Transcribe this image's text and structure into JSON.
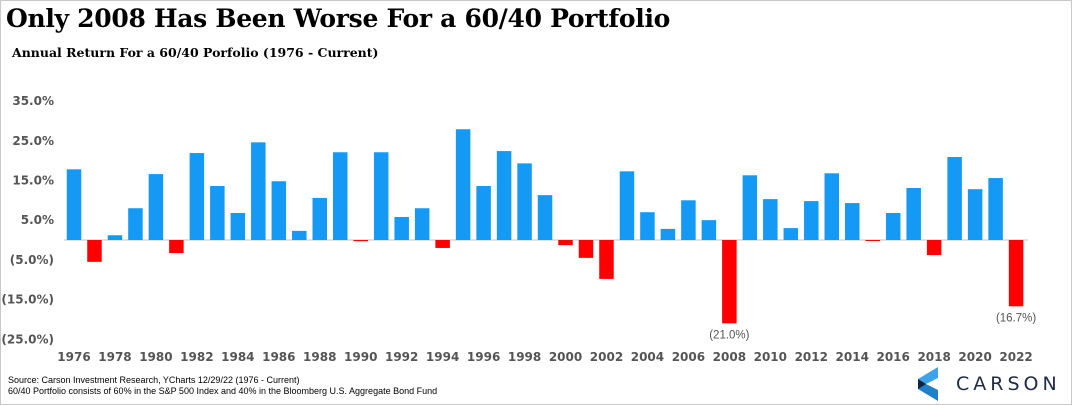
{
  "title": "Only 2008 Has Been Worse For a 60/40 Portfolio",
  "subtitle": "Annual Return For a 60/40 Porfolio (1976 - Current)",
  "source_line1": "Source: Carson Investment Research, YCharts 12/29/22 (1976 - Current)",
  "source_line2": "60/40 Portfolio consists of 60% in the S&P 500 Index and 40% in the Bloomberg U.S. Aggregate Bond Fund",
  "logo_text": "CARSON",
  "colors": {
    "positive": "#1499f5",
    "negative": "#ff0000",
    "axis": "#d9d9d9"
  },
  "chart_data": {
    "type": "bar",
    "title": "Annual Return For a 60/40 Porfolio (1976 - Current)",
    "xlabel": "",
    "ylabel": "",
    "ylim": [
      -25,
      35
    ],
    "yticks": [
      35,
      25,
      15,
      5,
      -5,
      -15,
      -25
    ],
    "ytick_labels": [
      "35.0%",
      "25.0%",
      "15.0%",
      "5.0%",
      "(5.0%)",
      "(15.0%)",
      "(25.0%)"
    ],
    "categories": [
      1976,
      1977,
      1978,
      1979,
      1980,
      1981,
      1982,
      1983,
      1984,
      1985,
      1986,
      1987,
      1988,
      1989,
      1990,
      1991,
      1992,
      1993,
      1994,
      1995,
      1996,
      1997,
      1998,
      1999,
      2000,
      2001,
      2002,
      2003,
      2004,
      2005,
      2006,
      2007,
      2008,
      2009,
      2010,
      2011,
      2012,
      2013,
      2014,
      2015,
      2016,
      2017,
      2018,
      2019,
      2020,
      2021,
      2022
    ],
    "xtick_labels": [
      "1976",
      "1978",
      "1980",
      "1982",
      "1984",
      "1986",
      "1988",
      "1990",
      "1992",
      "1994",
      "1996",
      "1998",
      "2000",
      "2002",
      "2004",
      "2006",
      "2008",
      "2010",
      "2012",
      "2014",
      "2016",
      "2018",
      "2020",
      "2022"
    ],
    "values": [
      17.8,
      -5.5,
      1.2,
      8.0,
      16.6,
      -3.3,
      21.9,
      13.6,
      6.8,
      24.6,
      14.8,
      2.3,
      10.6,
      22.1,
      -0.3,
      22.1,
      5.8,
      8.0,
      -2.0,
      27.9,
      13.6,
      22.4,
      19.3,
      11.3,
      -1.3,
      -4.5,
      -9.8,
      17.3,
      7.0,
      2.8,
      10.0,
      5.0,
      -21.0,
      16.3,
      10.3,
      3.0,
      9.8,
      16.8,
      9.3,
      -0.2,
      6.8,
      13.1,
      -3.8,
      20.9,
      12.8,
      15.6,
      -16.7
    ],
    "annotations": [
      {
        "year": 2008,
        "text": "(21.0%)"
      },
      {
        "year": 2022,
        "text": "(16.7%)"
      }
    ],
    "grid": false,
    "legend": "none"
  }
}
